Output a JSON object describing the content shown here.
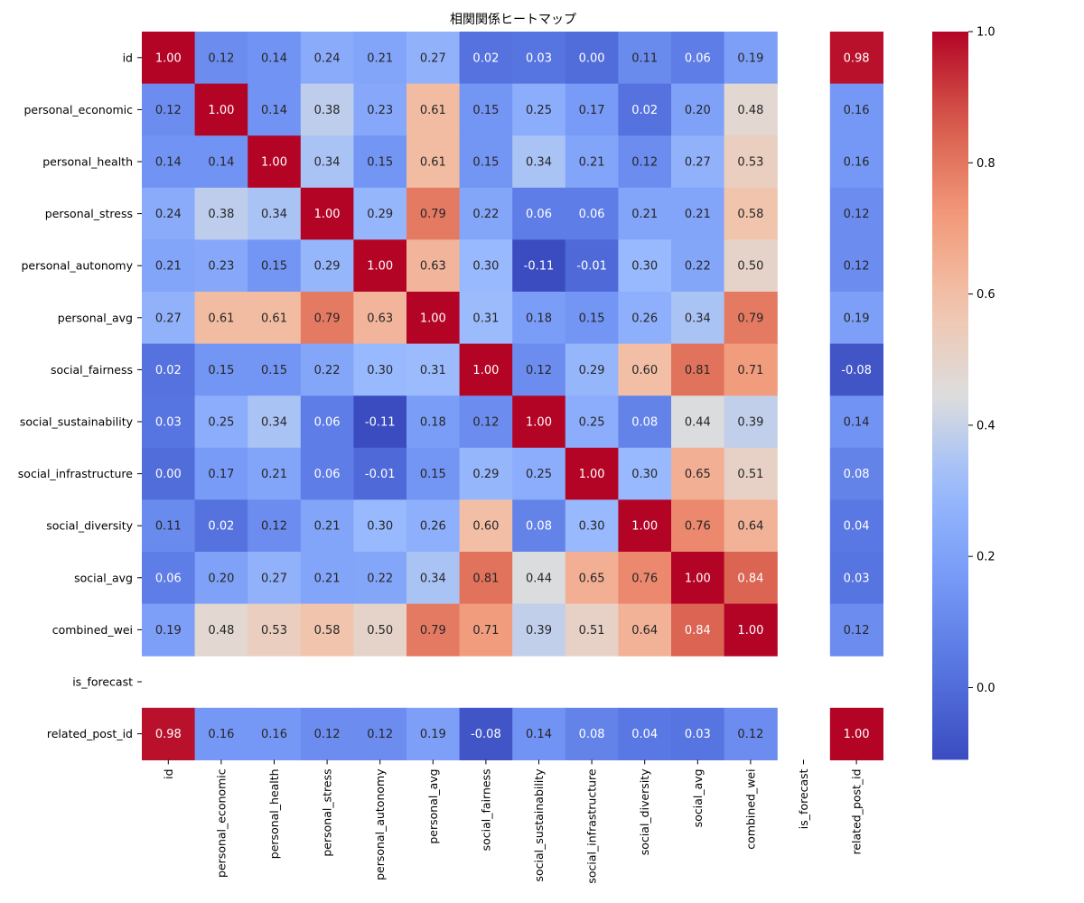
{
  "chart_data": {
    "type": "heatmap",
    "title": "相関関係ヒートマップ",
    "colormap": "coolwarm",
    "value_range": [
      -0.11,
      1.0
    ],
    "colorbar": {
      "ticks": [
        "0.0",
        "0.2",
        "0.4",
        "0.6",
        "0.8",
        "1.0"
      ],
      "tick_values": [
        0,
        0.2,
        0.4,
        0.6,
        0.8,
        1.0
      ],
      "placement": "right"
    },
    "x_labels": [
      "id",
      "personal_economic",
      "personal_health",
      "personal_stress",
      "personal_autonomy",
      "personal_avg",
      "social_fairness",
      "social_sustainability",
      "social_infrastructure",
      "social_diversity",
      "social_avg",
      "combined_wei",
      "is_forecast",
      "related_post_id"
    ],
    "y_labels": [
      "id",
      "personal_economic",
      "personal_health",
      "personal_stress",
      "personal_autonomy",
      "personal_avg",
      "social_fairness",
      "social_sustainability",
      "social_infrastructure",
      "social_diversity",
      "social_avg",
      "combined_wei",
      "is_forecast",
      "related_post_id"
    ],
    "matrix": [
      [
        1.0,
        0.12,
        0.14,
        0.24,
        0.21,
        0.27,
        0.02,
        0.03,
        0.0,
        0.11,
        0.06,
        0.19,
        null,
        0.98
      ],
      [
        0.12,
        1.0,
        0.14,
        0.38,
        0.23,
        0.61,
        0.15,
        0.25,
        0.17,
        0.02,
        0.2,
        0.48,
        null,
        0.16
      ],
      [
        0.14,
        0.14,
        1.0,
        0.34,
        0.15,
        0.61,
        0.15,
        0.34,
        0.21,
        0.12,
        0.27,
        0.53,
        null,
        0.16
      ],
      [
        0.24,
        0.38,
        0.34,
        1.0,
        0.29,
        0.79,
        0.22,
        0.06,
        0.06,
        0.21,
        0.21,
        0.58,
        null,
        0.12
      ],
      [
        0.21,
        0.23,
        0.15,
        0.29,
        1.0,
        0.63,
        0.3,
        -0.11,
        -0.01,
        0.3,
        0.22,
        0.5,
        null,
        0.12
      ],
      [
        0.27,
        0.61,
        0.61,
        0.79,
        0.63,
        1.0,
        0.31,
        0.18,
        0.15,
        0.26,
        0.34,
        0.79,
        null,
        0.19
      ],
      [
        0.02,
        0.15,
        0.15,
        0.22,
        0.3,
        0.31,
        1.0,
        0.12,
        0.29,
        0.6,
        0.81,
        0.71,
        null,
        -0.08
      ],
      [
        0.03,
        0.25,
        0.34,
        0.06,
        -0.11,
        0.18,
        0.12,
        1.0,
        0.25,
        0.08,
        0.44,
        0.39,
        null,
        0.14
      ],
      [
        0.0,
        0.17,
        0.21,
        0.06,
        -0.01,
        0.15,
        0.29,
        0.25,
        1.0,
        0.3,
        0.65,
        0.51,
        null,
        0.08
      ],
      [
        0.11,
        0.02,
        0.12,
        0.21,
        0.3,
        0.26,
        0.6,
        0.08,
        0.3,
        1.0,
        0.76,
        0.64,
        null,
        0.04
      ],
      [
        0.06,
        0.2,
        0.27,
        0.21,
        0.22,
        0.34,
        0.81,
        0.44,
        0.65,
        0.76,
        1.0,
        0.84,
        null,
        0.03
      ],
      [
        0.19,
        0.48,
        0.53,
        0.58,
        0.5,
        0.79,
        0.71,
        0.39,
        0.51,
        0.64,
        0.84,
        1.0,
        null,
        0.12
      ],
      [
        null,
        null,
        null,
        null,
        null,
        null,
        null,
        null,
        null,
        null,
        null,
        null,
        null,
        null
      ],
      [
        0.98,
        0.16,
        0.16,
        0.12,
        0.12,
        0.19,
        -0.08,
        0.14,
        0.08,
        0.04,
        0.03,
        0.12,
        null,
        1.0
      ]
    ],
    "annotation_format": "0.00"
  }
}
